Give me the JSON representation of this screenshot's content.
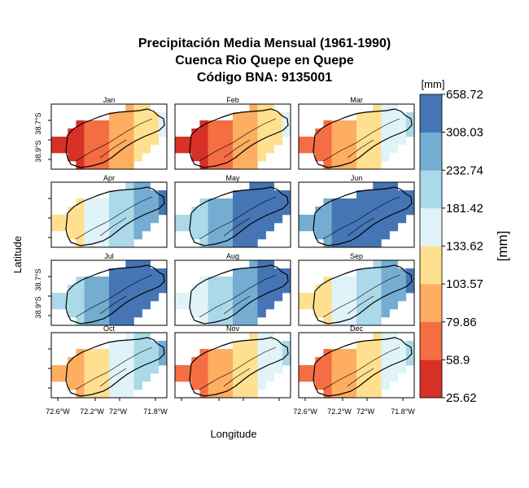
{
  "chart_data": {
    "type": "heatmap",
    "title": [
      "Precipitación Media Mensual (1961-1990)",
      "Cuenca Rio Quepe en Quepe",
      "Código BNA: 9135001"
    ],
    "xlabel": "Longitude",
    "ylabel": "Latitude",
    "x_ticks": [
      "72.6°W",
      "72.2°W",
      "72°W",
      "71.8°W"
    ],
    "y_ticks": [
      "38.9°S",
      "38.7°S"
    ],
    "legend": {
      "unit_label": "[mm]",
      "side_label": "[mm]",
      "breaks": [
        "25.62",
        "58.9",
        "79.86",
        "103.57",
        "133.62",
        "181.42",
        "232.74",
        "308.03",
        "658.72"
      ],
      "colors": [
        "#d73027",
        "#f46d43",
        "#fdae61",
        "#fee090",
        "#e0f3f8",
        "#abd9e9",
        "#74add1",
        "#4575b4"
      ]
    },
    "months": [
      "Jan",
      "Feb",
      "Mar",
      "Apr",
      "May",
      "Jun",
      "Jul",
      "Aug",
      "Sep",
      "Oct",
      "Nov",
      "Dec"
    ],
    "monthly_class_offset": [
      0,
      0,
      1,
      3,
      5,
      6,
      5,
      4,
      3,
      2,
      1,
      1
    ]
  }
}
